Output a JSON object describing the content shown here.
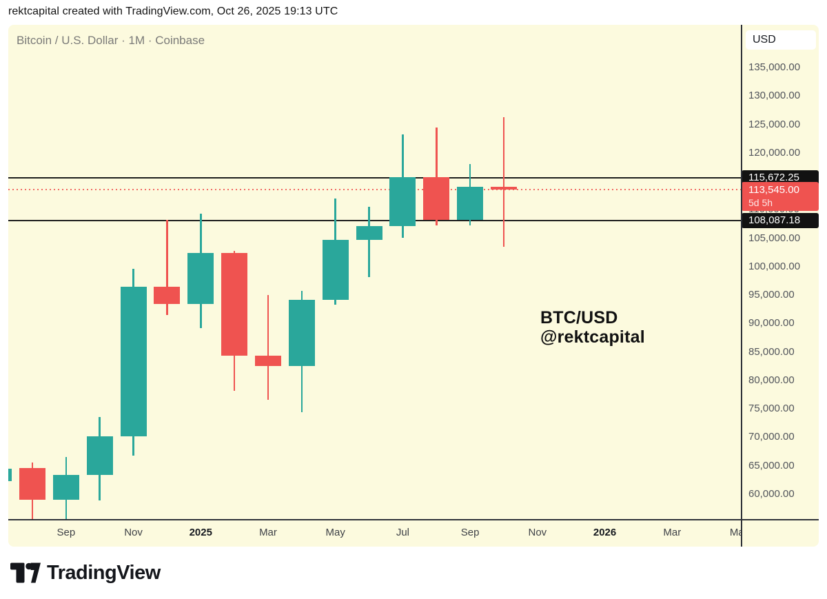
{
  "attribution": "rektcapital created with TradingView.com, Oct 26, 2025 19:13 UTC",
  "header": {
    "symbol_title": "Bitcoin / U.S. Dollar · 1M · Coinbase"
  },
  "watermark": {
    "line1": "BTC/USD",
    "line2": "@rektcapital"
  },
  "price_axis": {
    "currency_button": "USD",
    "ticks": [
      {
        "value": 135000,
        "label": "135,000.00"
      },
      {
        "value": 130000,
        "label": "130,000.00"
      },
      {
        "value": 125000,
        "label": "125,000.00"
      },
      {
        "value": 120000,
        "label": "120,000.00"
      },
      {
        "value": 115000,
        "label": "115,000.00"
      },
      {
        "value": 110000,
        "label": "110,000.00"
      },
      {
        "value": 105000,
        "label": "105,000.00"
      },
      {
        "value": 100000,
        "label": "100,000.00"
      },
      {
        "value": 95000,
        "label": "95,000.00"
      },
      {
        "value": 90000,
        "label": "90,000.00"
      },
      {
        "value": 85000,
        "label": "85,000.00"
      },
      {
        "value": 80000,
        "label": "80,000.00"
      },
      {
        "value": 75000,
        "label": "75,000.00"
      },
      {
        "value": 70000,
        "label": "70,000.00"
      },
      {
        "value": 65000,
        "label": "65,000.00"
      },
      {
        "value": 60000,
        "label": "60,000.00"
      }
    ]
  },
  "time_axis": {
    "ticks": [
      {
        "label": "Sep",
        "slot": 1,
        "bold": false
      },
      {
        "label": "Nov",
        "slot": 3,
        "bold": false
      },
      {
        "label": "2025",
        "slot": 5,
        "bold": true
      },
      {
        "label": "Mar",
        "slot": 7,
        "bold": false
      },
      {
        "label": "May",
        "slot": 9,
        "bold": false
      },
      {
        "label": "Jul",
        "slot": 11,
        "bold": false
      },
      {
        "label": "Sep",
        "slot": 13,
        "bold": false
      },
      {
        "label": "Nov",
        "slot": 15,
        "bold": false
      },
      {
        "label": "2026",
        "slot": 17,
        "bold": true
      },
      {
        "label": "Mar",
        "slot": 19,
        "bold": false
      },
      {
        "label": "May",
        "slot": 21,
        "bold": false
      }
    ]
  },
  "price_lines": [
    {
      "type": "level",
      "value": 115672.25,
      "label": "115,672.25"
    },
    {
      "type": "current",
      "value": 113545.0,
      "label": "113,545.00",
      "countdown": "5d 5h"
    },
    {
      "type": "level",
      "value": 108087.18,
      "label": "108,087.18"
    }
  ],
  "footer": {
    "brand": "TradingView"
  },
  "colors": {
    "up": "#2aa79b",
    "down": "#ef5350",
    "chart_bg": "#fcfade",
    "level_line": "#1d1d1d",
    "current_line": "#ef5350",
    "badge_dark": "#121212",
    "badge_current": "#ef5350"
  },
  "chart_data": {
    "type": "candlestick",
    "title": "Bitcoin / U.S. Dollar · 1M · Coinbase",
    "symbol": "BTC/USD",
    "interval": "1M",
    "exchange": "Coinbase",
    "ylim": [
      55635,
      142512
    ],
    "grid": false,
    "horizontal_levels": [
      115672.25,
      108087.18
    ],
    "last_price": 113545.0,
    "last_price_countdown": "5d 5h",
    "candles": [
      {
        "month": "Jul 2024",
        "open": 62300,
        "high": 64500,
        "low": 62300,
        "close": 64500,
        "partial": true
      },
      {
        "month": "Aug 2024",
        "open": 64620,
        "high": 65590,
        "low": 49050,
        "close": 58970
      },
      {
        "month": "Sep 2024",
        "open": 58970,
        "high": 66480,
        "low": 52550,
        "close": 63330
      },
      {
        "month": "Oct 2024",
        "open": 63330,
        "high": 73620,
        "low": 58900,
        "close": 70215
      },
      {
        "month": "Nov 2024",
        "open": 70215,
        "high": 99655,
        "low": 66835,
        "close": 96450
      },
      {
        "month": "Dec 2024",
        "open": 96450,
        "high": 108270,
        "low": 91530,
        "close": 93430
      },
      {
        "month": "Jan 2025",
        "open": 93430,
        "high": 109360,
        "low": 89195,
        "close": 102405
      },
      {
        "month": "Feb 2025",
        "open": 102405,
        "high": 102780,
        "low": 78200,
        "close": 84350
      },
      {
        "month": "Mar 2025",
        "open": 84350,
        "high": 95000,
        "low": 76600,
        "close": 82535
      },
      {
        "month": "Apr 2025",
        "open": 82535,
        "high": 95770,
        "low": 74435,
        "close": 94210
      },
      {
        "month": "May 2025",
        "open": 94210,
        "high": 111980,
        "low": 93340,
        "close": 104650
      },
      {
        "month": "Jun 2025",
        "open": 104650,
        "high": 110530,
        "low": 98200,
        "close": 107135
      },
      {
        "month": "Jul 2025",
        "open": 107135,
        "high": 123220,
        "low": 105110,
        "close": 115760
      },
      {
        "month": "Aug 2025",
        "open": 115760,
        "high": 124475,
        "low": 107270,
        "close": 108235
      },
      {
        "month": "Sep 2025",
        "open": 108235,
        "high": 118000,
        "low": 107250,
        "close": 114045
      },
      {
        "month": "Oct 2025",
        "open": 114045,
        "high": 126300,
        "low": 103530,
        "close": 113545
      }
    ]
  }
}
